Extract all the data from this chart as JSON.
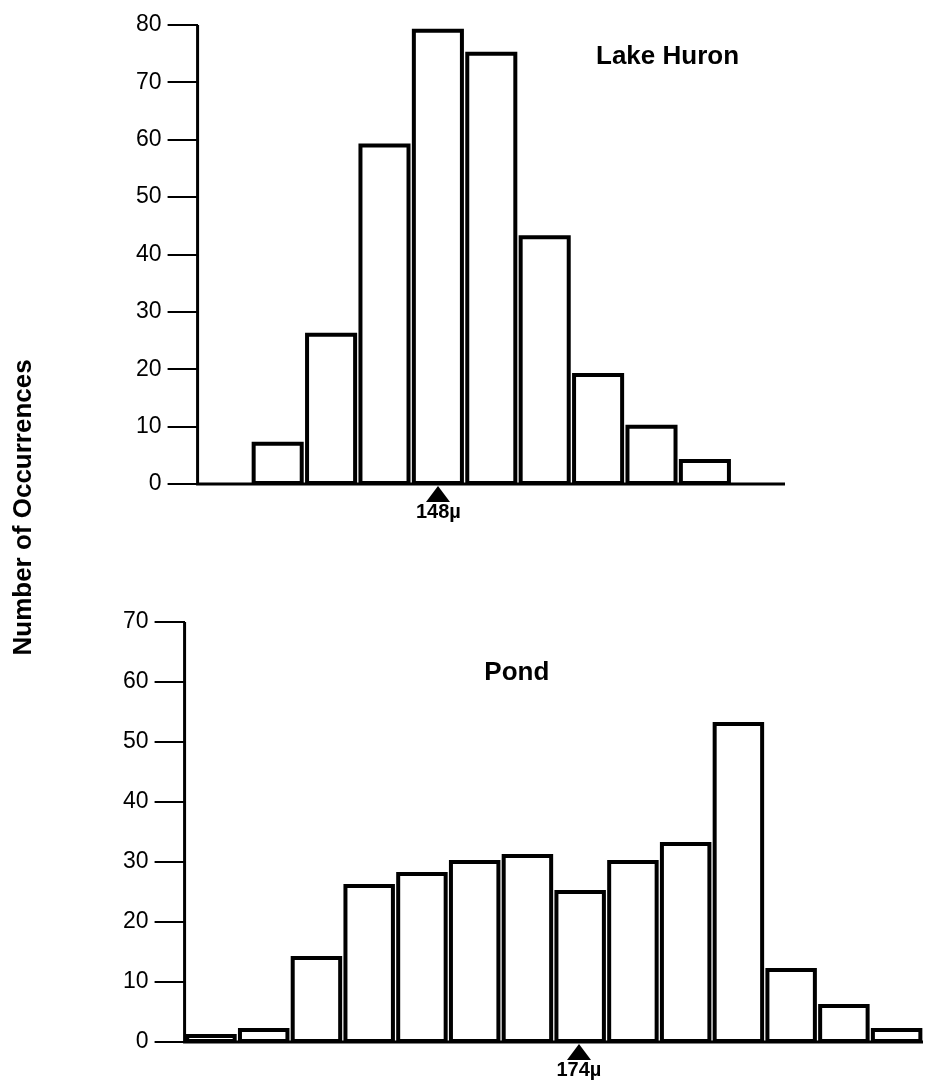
{
  "chart_data": [
    {
      "type": "bar",
      "title": "Lake Huron",
      "ylabel": "Number of Occurrences",
      "categories": [
        null,
        null,
        null,
        null,
        null,
        null,
        null,
        null,
        null,
        null,
        null
      ],
      "values": [
        null,
        7,
        26,
        59,
        79,
        75,
        43,
        19,
        10,
        4,
        null
      ],
      "color": "#ffffff",
      "ylim": [
        0,
        80
      ],
      "yticks": [
        0,
        10,
        20,
        30,
        40,
        50,
        60,
        70,
        80
      ],
      "annotations": [
        "148µ"
      ]
    },
    {
      "type": "bar",
      "title": "Pond",
      "categories": [
        null,
        null,
        null,
        null,
        null,
        null,
        null,
        null,
        null,
        null,
        null,
        null,
        null,
        null
      ],
      "values": [
        1,
        2,
        14,
        26,
        28,
        30,
        31,
        25,
        30,
        33,
        53,
        12,
        6,
        2
      ],
      "color": "#ffffff",
      "ylim": [
        0,
        70
      ],
      "yticks": [
        0,
        10,
        20,
        30,
        40,
        50,
        60,
        70
      ],
      "annotations": [
        "174µ"
      ]
    }
  ]
}
